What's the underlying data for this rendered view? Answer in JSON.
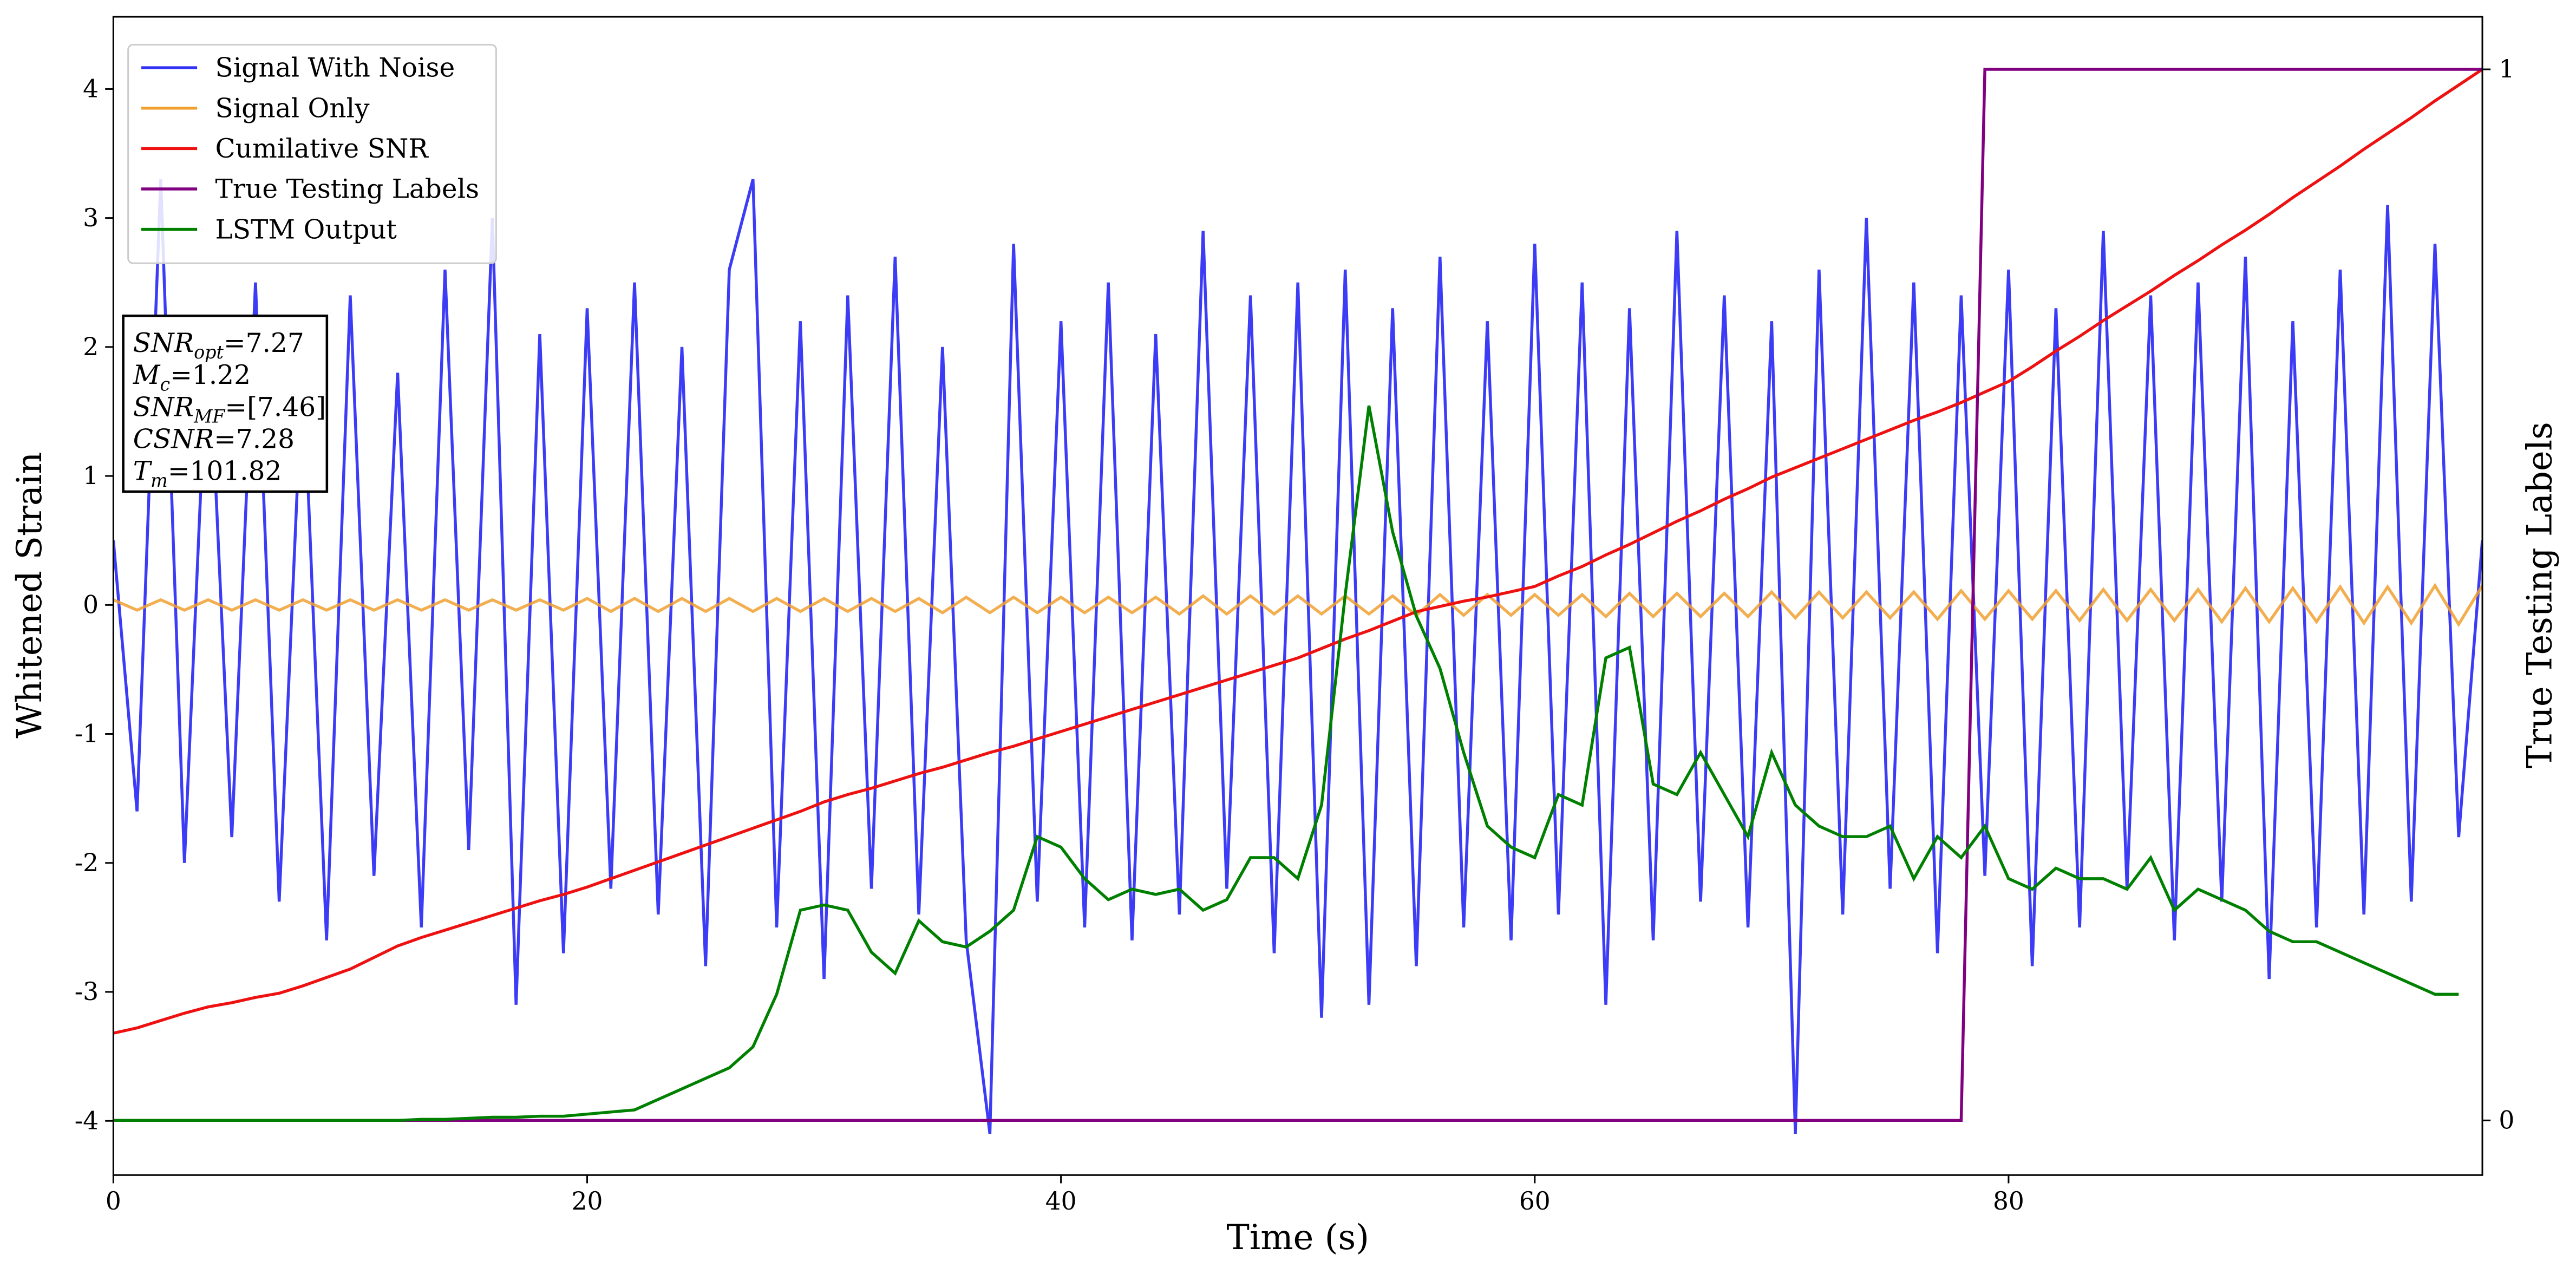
{
  "chart_data": {
    "type": "line",
    "xlabel": "Time (s)",
    "ylabel": "Whitened Strain",
    "y2label": "True Testing Labels",
    "xlim": [
      0,
      100
    ],
    "xticks": [
      0,
      20,
      40,
      60,
      80
    ],
    "ylim": [
      -4.42,
      4.56
    ],
    "yticks": [
      -4,
      -3,
      -2,
      -1,
      0,
      1,
      2,
      3,
      4
    ],
    "y2lim": [
      -0.052,
      1.05
    ],
    "y2ticks": [
      0,
      1
    ],
    "legend": "upper left",
    "x": [
      0,
      1,
      2,
      3,
      4,
      5,
      6,
      7,
      8,
      9,
      10,
      11,
      12,
      13,
      14,
      15,
      16,
      17,
      18,
      19,
      20,
      21,
      22,
      23,
      24,
      25,
      26,
      27,
      28,
      29,
      30,
      31,
      32,
      33,
      34,
      35,
      36,
      37,
      38,
      39,
      40,
      41,
      42,
      43,
      44,
      45,
      46,
      47,
      48,
      49,
      50,
      51,
      52,
      53,
      54,
      55,
      56,
      57,
      58,
      59,
      60,
      61,
      62,
      63,
      64,
      65,
      66,
      67,
      68,
      69,
      70,
      71,
      72,
      73,
      74,
      75,
      76,
      77,
      78,
      79,
      80,
      81,
      82,
      83,
      84,
      85,
      86,
      87,
      88,
      89,
      90,
      91,
      92,
      93,
      94,
      95,
      96,
      97,
      98,
      99,
      100
    ],
    "series": [
      {
        "name": "Signal With Noise",
        "color": "#3232f5",
        "values": [
          0.5,
          -1.6,
          3.3,
          -2.0,
          2.2,
          -1.8,
          2.5,
          -2.3,
          1.9,
          -2.6,
          2.4,
          -2.1,
          1.8,
          -2.5,
          2.6,
          -1.9,
          3.0,
          -3.1,
          2.1,
          -2.7,
          2.3,
          -2.2,
          2.5,
          -2.4,
          2.0,
          -2.8,
          2.6,
          3.3,
          -2.5,
          2.2,
          -2.9,
          2.4,
          -2.2,
          2.7,
          -2.4,
          2.0,
          -2.6,
          -4.1,
          2.8,
          -2.3,
          2.2,
          -2.5,
          2.5,
          -2.6,
          2.1,
          -2.4,
          2.9,
          -2.2,
          2.4,
          -2.7,
          2.5,
          -3.2,
          2.6,
          -3.1,
          2.3,
          -2.8,
          2.7,
          -2.5,
          2.2,
          -2.6,
          2.8,
          -2.4,
          2.5,
          -3.1,
          2.3,
          -2.6,
          2.9,
          -2.3,
          2.4,
          -2.5,
          2.2,
          -4.1,
          2.6,
          -2.4,
          3.0,
          -2.2,
          2.5,
          -2.7,
          2.4,
          -2.1,
          2.6,
          -2.8,
          2.3,
          -2.5,
          2.9,
          -2.2,
          2.4,
          -2.6,
          2.5,
          -2.3,
          2.7,
          -2.9,
          2.2,
          -2.5,
          2.6,
          -2.4,
          3.1,
          -2.3,
          2.8,
          -1.8,
          0.5
        ]
      },
      {
        "name": "Signal Only",
        "color": "#f0a030",
        "values": [
          0.04,
          -0.04,
          0.04,
          -0.04,
          0.04,
          -0.04,
          0.04,
          -0.04,
          0.04,
          -0.04,
          0.04,
          -0.04,
          0.04,
          -0.04,
          0.04,
          -0.04,
          0.04,
          -0.04,
          0.04,
          -0.04,
          0.05,
          -0.05,
          0.05,
          -0.05,
          0.05,
          -0.05,
          0.05,
          -0.05,
          0.05,
          -0.05,
          0.05,
          -0.05,
          0.05,
          -0.05,
          0.05,
          -0.06,
          0.06,
          -0.06,
          0.06,
          -0.06,
          0.06,
          -0.06,
          0.06,
          -0.06,
          0.06,
          -0.07,
          0.07,
          -0.07,
          0.07,
          -0.07,
          0.07,
          -0.07,
          0.07,
          -0.07,
          0.07,
          -0.08,
          0.08,
          -0.08,
          0.08,
          -0.08,
          0.08,
          -0.08,
          0.08,
          -0.09,
          0.09,
          -0.09,
          0.09,
          -0.09,
          0.09,
          -0.09,
          0.1,
          -0.1,
          0.1,
          -0.1,
          0.1,
          -0.1,
          0.1,
          -0.11,
          0.11,
          -0.11,
          0.11,
          -0.11,
          0.11,
          -0.12,
          0.12,
          -0.12,
          0.12,
          -0.12,
          0.12,
          -0.13,
          0.13,
          -0.13,
          0.13,
          -0.13,
          0.14,
          -0.14,
          0.14,
          -0.14,
          0.15,
          -0.15,
          0.15
        ]
      },
      {
        "name": "Cumilative SNR",
        "color": "#ee1111",
        "axis": "y2",
        "values": [
          0.083,
          0.088,
          0.095,
          0.102,
          0.108,
          0.112,
          0.117,
          0.121,
          0.128,
          0.136,
          0.144,
          0.155,
          0.166,
          0.174,
          0.181,
          0.188,
          0.195,
          0.202,
          0.209,
          0.215,
          0.222,
          0.23,
          0.238,
          0.246,
          0.254,
          0.262,
          0.27,
          0.278,
          0.286,
          0.294,
          0.303,
          0.31,
          0.316,
          0.323,
          0.33,
          0.336,
          0.343,
          0.35,
          0.356,
          0.363,
          0.37,
          0.377,
          0.384,
          0.391,
          0.398,
          0.405,
          0.412,
          0.419,
          0.426,
          0.433,
          0.44,
          0.449,
          0.458,
          0.466,
          0.475,
          0.484,
          0.489,
          0.494,
          0.498,
          0.503,
          0.508,
          0.518,
          0.527,
          0.538,
          0.548,
          0.559,
          0.57,
          0.58,
          0.591,
          0.601,
          0.612,
          0.621,
          0.63,
          0.639,
          0.648,
          0.657,
          0.666,
          0.674,
          0.683,
          0.693,
          0.703,
          0.717,
          0.732,
          0.746,
          0.761,
          0.775,
          0.789,
          0.804,
          0.818,
          0.833,
          0.847,
          0.862,
          0.878,
          0.893,
          0.908,
          0.924,
          0.939,
          0.954,
          0.97,
          0.985,
          1.0
        ]
      },
      {
        "name": "True Testing Labels",
        "color": "#800080",
        "axis": "y2",
        "values": [
          0,
          0,
          0,
          0,
          0,
          0,
          0,
          0,
          0,
          0,
          0,
          0,
          0,
          0,
          0,
          0,
          0,
          0,
          0,
          0,
          0,
          0,
          0,
          0,
          0,
          0,
          0,
          0,
          0,
          0,
          0,
          0,
          0,
          0,
          0,
          0,
          0,
          0,
          0,
          0,
          0,
          0,
          0,
          0,
          0,
          0,
          0,
          0,
          0,
          0,
          0,
          0,
          0,
          0,
          0,
          0,
          0,
          0,
          0,
          0,
          0,
          0,
          0,
          0,
          0,
          0,
          0,
          0,
          0,
          0,
          0,
          0,
          0,
          0,
          0,
          0,
          0,
          0,
          0,
          1,
          1,
          1,
          1,
          1,
          1,
          1,
          1,
          1,
          1,
          1,
          1,
          1,
          1,
          1,
          1,
          1,
          1,
          1,
          1,
          1,
          1
        ]
      },
      {
        "name": "LSTM Output",
        "color": "#008000",
        "axis": "y2",
        "values": [
          0,
          0,
          0,
          0,
          0,
          0,
          0,
          0,
          0,
          0,
          0,
          0,
          0,
          0.001,
          0.001,
          0.002,
          0.003,
          0.003,
          0.004,
          0.004,
          0.006,
          0.008,
          0.01,
          0.02,
          0.03,
          0.04,
          0.05,
          0.07,
          0.12,
          0.2,
          0.205,
          0.2,
          0.16,
          0.14,
          0.19,
          0.17,
          0.165,
          0.18,
          0.2,
          0.27,
          0.26,
          0.23,
          0.21,
          0.22,
          0.215,
          0.22,
          0.2,
          0.21,
          0.25,
          0.25,
          0.23,
          0.3,
          0.5,
          0.68,
          0.56,
          0.48,
          0.43,
          0.35,
          0.28,
          0.26,
          0.25,
          0.31,
          0.3,
          0.44,
          0.45,
          0.32,
          0.31,
          0.35,
          0.31,
          0.27,
          0.35,
          0.3,
          0.28,
          0.27,
          0.27,
          0.28,
          0.23,
          0.27,
          0.25,
          0.28,
          0.23,
          0.22,
          0.24,
          0.23,
          0.23,
          0.22,
          0.25,
          0.2,
          0.22,
          0.21,
          0.2,
          0.18,
          0.17,
          0.17,
          0.16,
          0.15,
          0.14,
          0.13,
          0.12,
          0.12,
          null
        ]
      }
    ],
    "annotation": [
      {
        "symbol": "SNR",
        "subscript": "opt",
        "text": "=7.27"
      },
      {
        "symbol": "M",
        "subscript": "c",
        "text": "=1.22"
      },
      {
        "symbol": "SNR",
        "subscript": "MF",
        "text": "=[7.46]"
      },
      {
        "symbol": "CSNR",
        "text": "=7.28"
      },
      {
        "symbol": "T",
        "subscript": "m",
        "text": "=101.82"
      }
    ]
  }
}
